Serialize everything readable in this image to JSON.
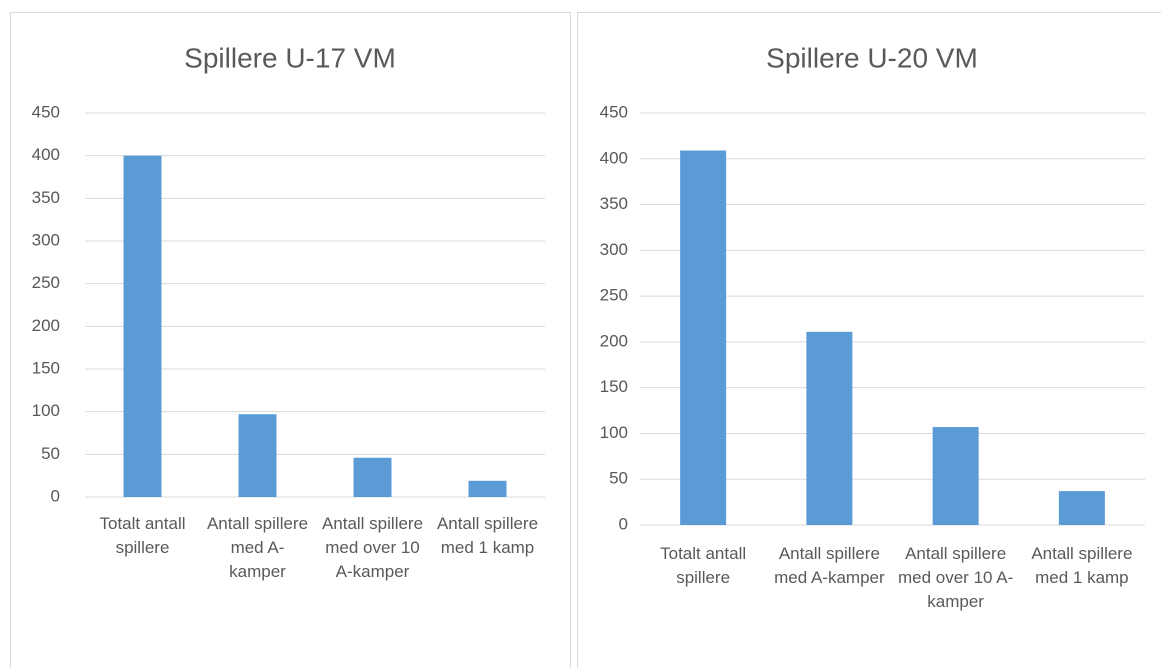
{
  "chart_data": [
    {
      "type": "bar",
      "title": "Spillere U-17 VM",
      "categories": [
        "Totalt antall spillere",
        "Antall spillere med A-kamper",
        "Antall spillere med over 10 A-kamper",
        "Antall spillere med 1 kamp"
      ],
      "values": [
        400,
        97,
        46,
        19
      ],
      "color": "#5b9bd5",
      "ylim": [
        0,
        450
      ],
      "yticks": [
        0,
        50,
        100,
        150,
        200,
        250,
        300,
        350,
        400,
        450
      ],
      "grid": true
    },
    {
      "type": "bar",
      "title": "Spillere U-20 VM",
      "categories": [
        "Totalt antall spillere",
        "Antall spillere med A-kamper",
        "Antall spillere med over 10 A-kamper",
        "Antall spillere med 1 kamp"
      ],
      "values": [
        409,
        211,
        107,
        37
      ],
      "color": "#5b9bd5",
      "ylim": [
        0,
        450
      ],
      "yticks": [
        0,
        50,
        100,
        150,
        200,
        250,
        300,
        350,
        400,
        450
      ],
      "grid": true
    }
  ]
}
